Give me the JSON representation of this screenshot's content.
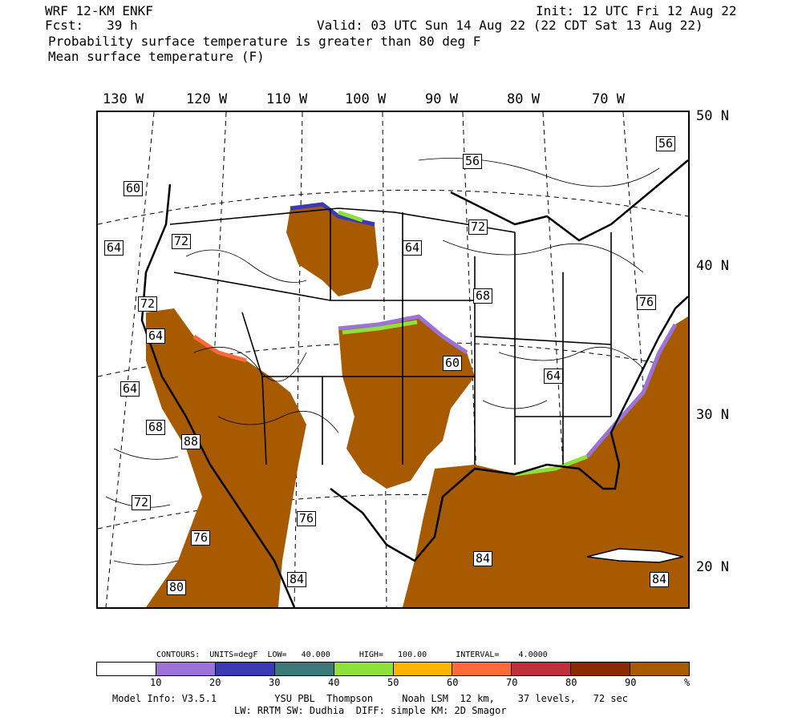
{
  "header": {
    "model": "WRF 12-KM ENKF",
    "fcst": "Fcst:   39 h",
    "init": "Init: 12 UTC Fri 12 Aug 22",
    "valid": "Valid: 03 UTC Sun 14 Aug 22 (22 CDT Sat 13 Aug 22)",
    "line1": "Probability surface temperature is greater than 80 deg F",
    "line2": "Mean surface temperature (F)"
  },
  "longitudes": [
    "130 W",
    "120 W",
    "110 W",
    "100 W",
    "90 W",
    "80 W",
    "70 W"
  ],
  "latitudes": [
    "50 N",
    "40 N",
    "30 N",
    "20 N"
  ],
  "contour_labels": [
    "60",
    "64",
    "72",
    "72",
    "64",
    "64",
    "68",
    "88",
    "72",
    "76",
    "80",
    "84",
    "76",
    "56",
    "72",
    "64",
    "68",
    "60",
    "64",
    "84",
    "84",
    "76",
    "56"
  ],
  "colorbar": {
    "contours_info": "CONTOURS:  UNITS=degF  LOW=   40.000      HIGH=   100.00      INTERVAL=    4.0000",
    "colors": [
      "#ffffff",
      "#9a72d8",
      "#3a3ab4",
      "#3a7a7a",
      "#8ee03a",
      "#ffb400",
      "#ff6a3a",
      "#c0303a",
      "#8a2a00",
      "#a85a00"
    ],
    "ticks": [
      "10",
      "20",
      "30",
      "40",
      "50",
      "60",
      "70",
      "80",
      "90",
      "%"
    ]
  },
  "footer": {
    "line1": "Model Info: V3.5.1          YSU PBL  Thompson     Noah LSM  12 km,    37 levels,   72 sec",
    "line2": "LW: RRTM SW: Dudhia  DIFF: simple KM: 2D Smagor"
  }
}
